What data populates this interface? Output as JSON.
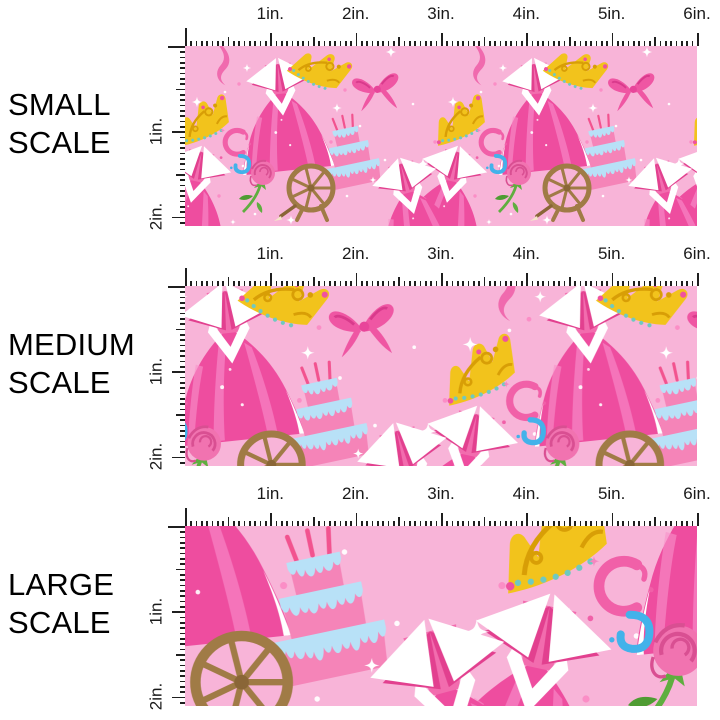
{
  "rows": [
    {
      "id": "small",
      "label": [
        "SMALL",
        "SCALE"
      ],
      "zoom": 1
    },
    {
      "id": "medium",
      "label": [
        "MEDIUM",
        "SCALE"
      ],
      "zoom": 1.4
    },
    {
      "id": "large",
      "label": [
        "LARGE",
        "SCALE"
      ],
      "zoom": 2.1
    }
  ],
  "ruler": {
    "horizontal_labels": [
      "1in.",
      "2in.",
      "3in.",
      "4in.",
      "5in.",
      "6in."
    ],
    "vertical_labels": [
      "1in.",
      "2in."
    ],
    "inches_shown_horizontal": 6,
    "inches_shown_vertical": 2,
    "subdivisions_per_inch": 16
  },
  "fabric": {
    "theme": "pink-princess-fabric",
    "motifs": [
      "princess-dress",
      "gold-tiara",
      "pink-bow",
      "birthday-cake",
      "spinning-wheel",
      "rose",
      "magic-swirl",
      "ribbon-strand",
      "sparkles"
    ],
    "colors": {
      "background": "#f8b4d8",
      "dress_pink": "#ee4d9f",
      "dress_light_fold": "#f67ec0",
      "bodice_pink": "#f26cae",
      "collar_white": "#ffffff",
      "tiara_gold": "#f2c31c",
      "tiara_detail": "#d89e06",
      "tiara_beads": "#6fc9c0",
      "bow_pink": "#ef56a3",
      "cake_pink": "#f584b8",
      "icing_blue": "#b8e1f7",
      "wheel_brown": "#a07b46",
      "rose_pink": "#f173b0",
      "leaf_green": "#5fae3f",
      "swirl_pink": "#f160a8",
      "swirl_blue": "#43b2ea",
      "sparkle_white": "#ffffff",
      "tick_color": "#1f1f1f"
    }
  }
}
